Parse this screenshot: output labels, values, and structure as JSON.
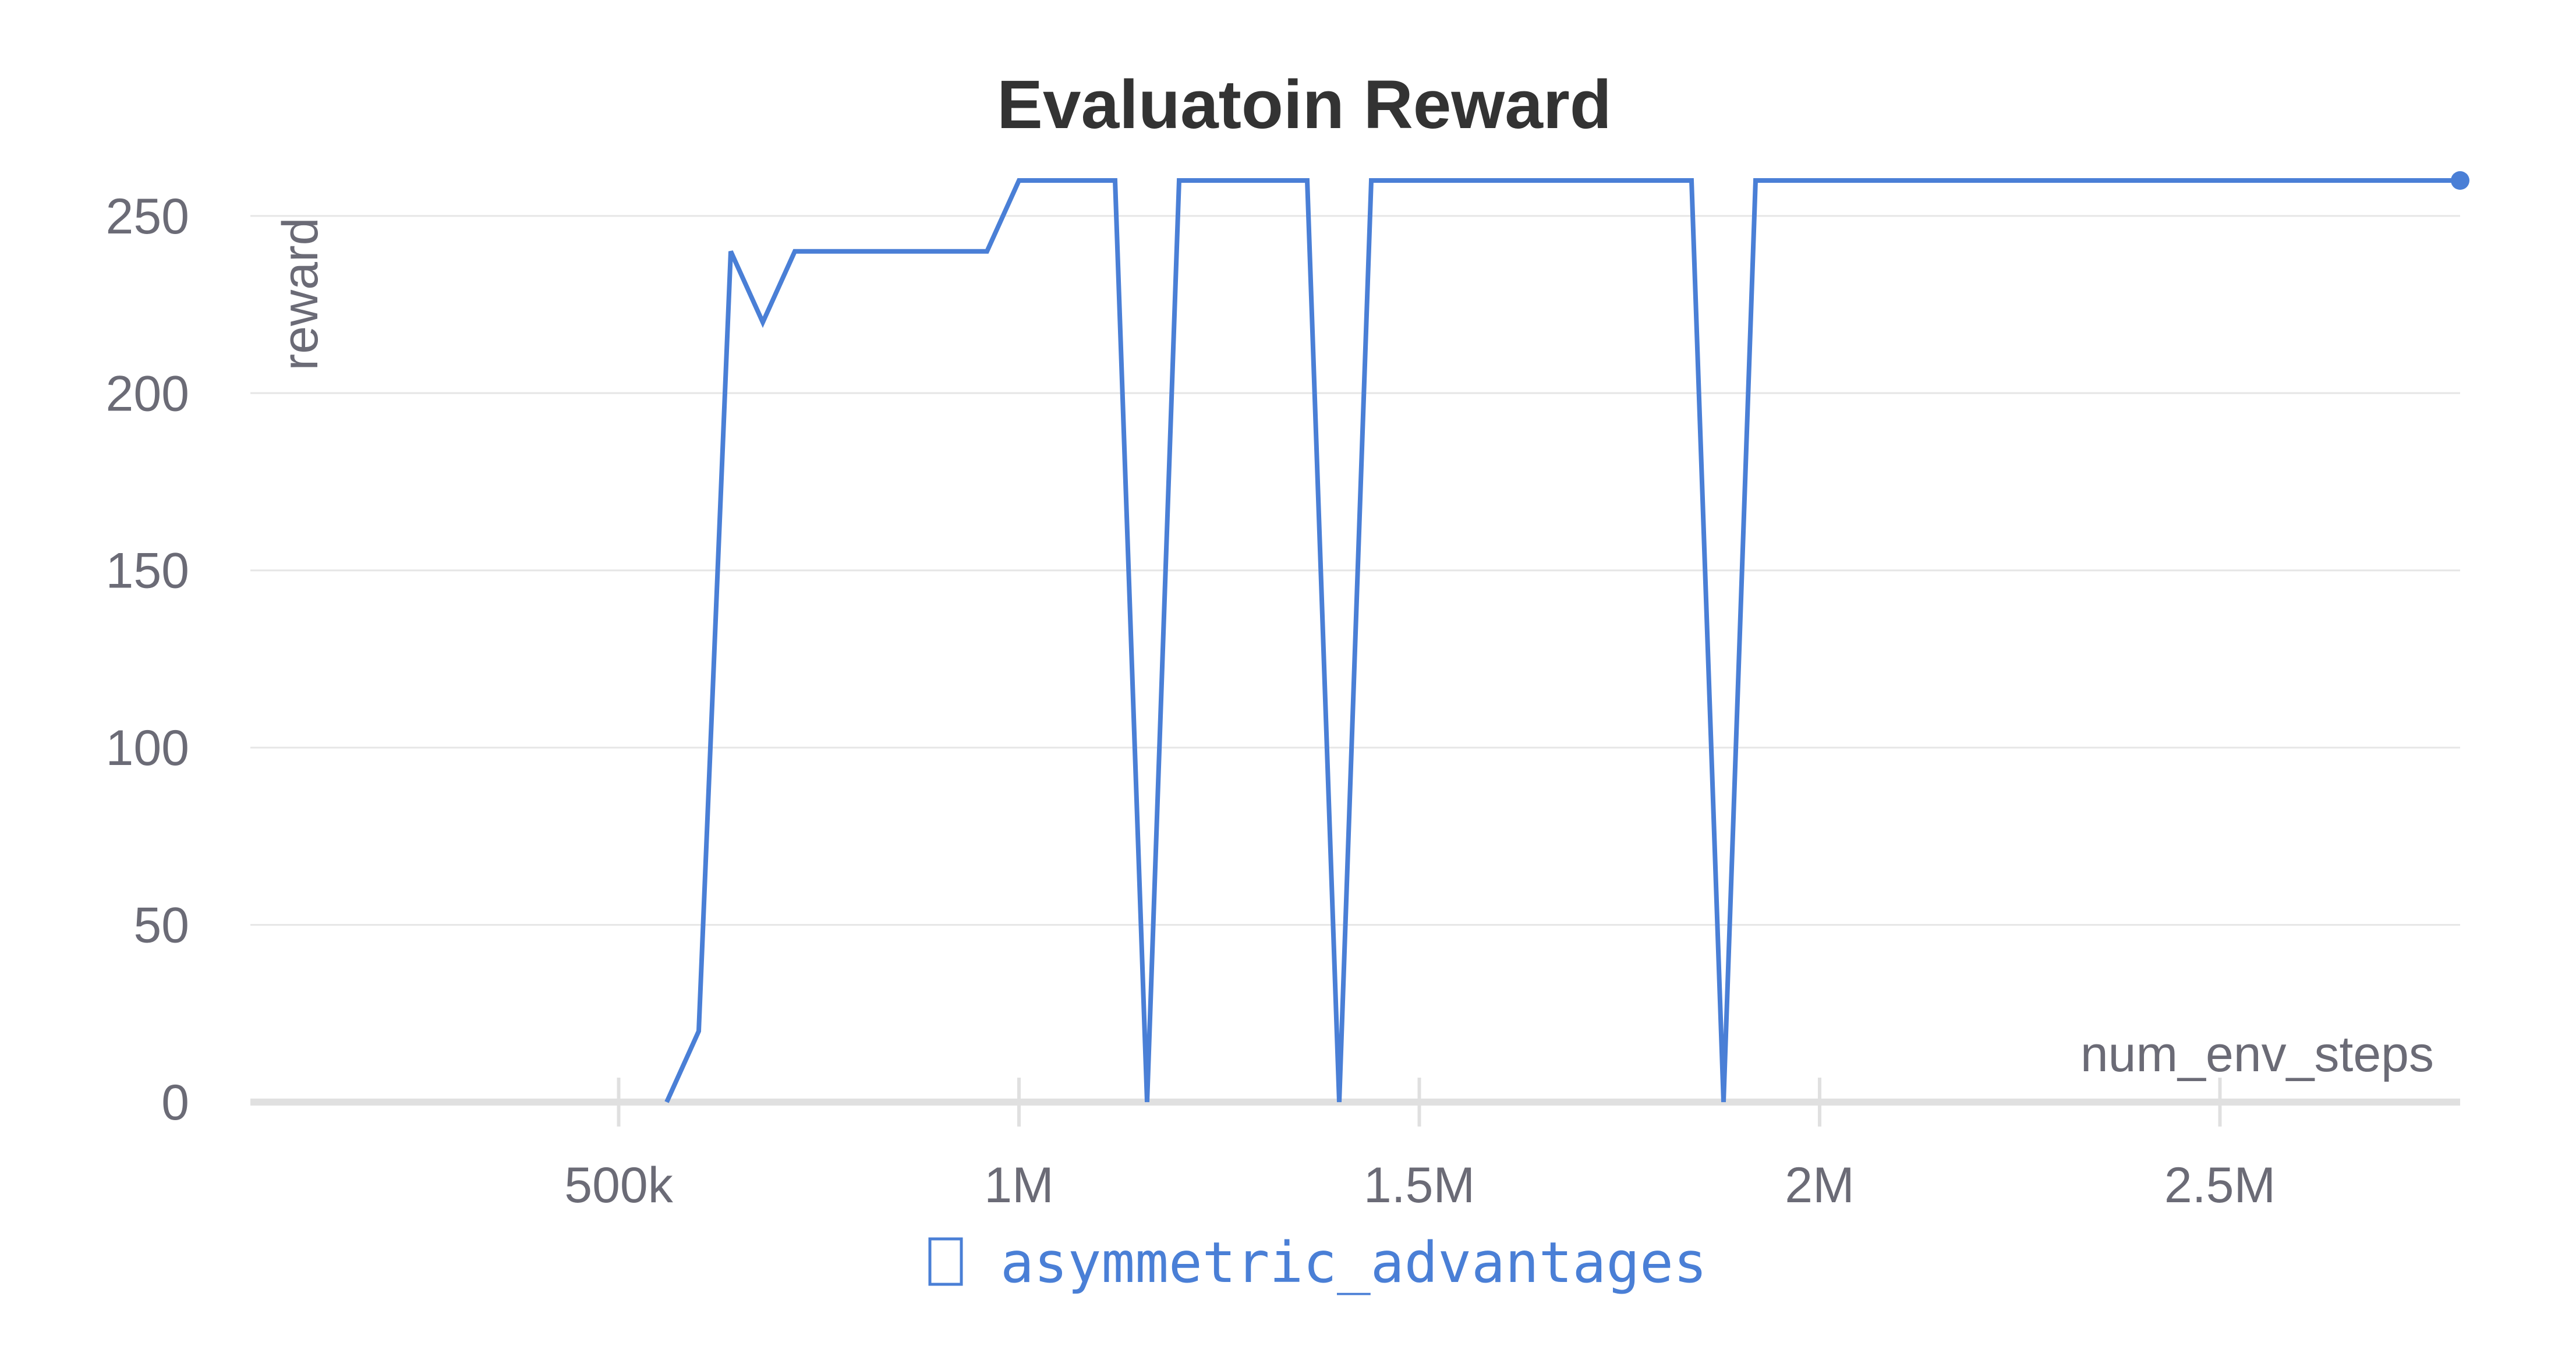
{
  "chart_data": {
    "type": "line",
    "title": "Evaluatoin Reward",
    "xlabel": "num_env_steps",
    "ylabel": "reward",
    "xlim": [
      40000,
      2800000
    ],
    "ylim": [
      0,
      260
    ],
    "x_ticks": [
      500000,
      1000000,
      1500000,
      2000000,
      2500000
    ],
    "x_tick_labels": [
      "500k",
      "1M",
      "1.5M",
      "2M",
      "2.5M"
    ],
    "y_ticks": [
      0,
      50,
      100,
      150,
      200,
      250
    ],
    "y_tick_labels": [
      "0",
      "50",
      "100",
      "150",
      "200",
      "250"
    ],
    "grid": true,
    "legend_position": "bottom-center",
    "series": [
      {
        "name": "asymmetric_advantages",
        "color": "#4a7fd6",
        "x": [
          560000,
          600000,
          640000,
          680000,
          720000,
          760000,
          800000,
          840000,
          880000,
          920000,
          960000,
          1000000,
          1040000,
          1080000,
          1120000,
          1160000,
          1200000,
          1240000,
          1280000,
          1320000,
          1360000,
          1400000,
          1440000,
          1480000,
          1520000,
          1560000,
          1600000,
          1640000,
          1680000,
          1720000,
          1760000,
          1800000,
          1840000,
          1880000,
          1920000,
          1960000,
          2000000,
          2200000,
          2400000,
          2600000,
          2800000
        ],
        "y": [
          0,
          20,
          240,
          220,
          240,
          240,
          240,
          240,
          240,
          240,
          240,
          260,
          260,
          260,
          260,
          0,
          260,
          260,
          260,
          260,
          260,
          0,
          260,
          260,
          260,
          260,
          260,
          260,
          260,
          260,
          260,
          260,
          260,
          0,
          260,
          260,
          260,
          260,
          260,
          260,
          260
        ]
      }
    ]
  }
}
